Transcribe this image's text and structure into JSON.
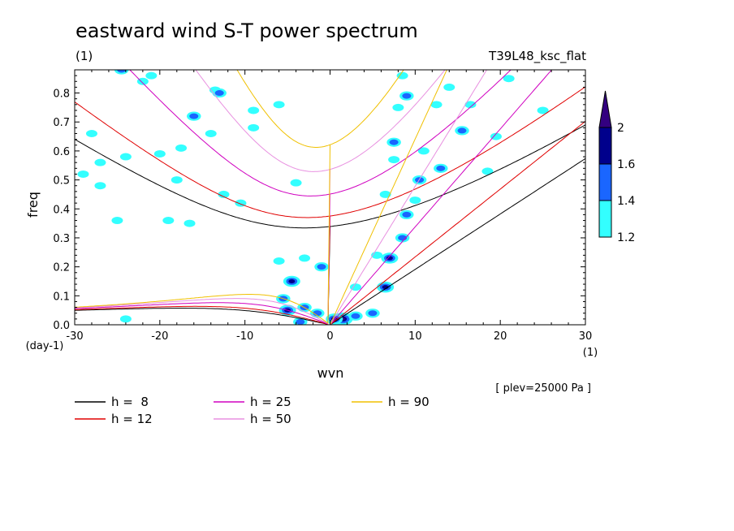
{
  "chart_data": {
    "type": "heatmap",
    "title": "eastward wind S-T power spectrum",
    "subtitle_left": "(1)",
    "subtitle_right": "T39L48_ksc_flat",
    "xlabel": "wvn",
    "ylabel": "freq",
    "x_unit": "(1)",
    "y_unit": "(day-1)",
    "level_note": "[ plev=25000 Pa ]",
    "xlim": [
      -30,
      30
    ],
    "ylim": [
      0,
      0.88
    ],
    "x_ticks": [
      -30,
      -20,
      -10,
      0,
      10,
      20,
      30
    ],
    "x_tick_labels": [
      "-30",
      "-20",
      "-10",
      "0",
      "10",
      "20",
      "30"
    ],
    "y_ticks": [
      0.0,
      0.1,
      0.2,
      0.3,
      0.4,
      0.5,
      0.6,
      0.7,
      0.8
    ],
    "y_tick_labels": [
      "0.0",
      "0.1",
      "0.2",
      "0.3",
      "0.4",
      "0.5",
      "0.6",
      "0.7",
      "0.8"
    ],
    "grid": false,
    "colorbar": {
      "levels": [
        1.2,
        1.4,
        1.6,
        2
      ],
      "labels": [
        "1.2",
        "1.4",
        "1.6",
        "2"
      ],
      "colors": [
        "#33ffff",
        "#1a66ff",
        "#00008c",
        "#330080"
      ],
      "extend": "max"
    },
    "dispersion_curves": [
      {
        "label": "h =  8",
        "h": 8,
        "color": "#000000"
      },
      {
        "label": "h = 12",
        "h": 12,
        "color": "#e00000"
      },
      {
        "label": "h = 25",
        "h": 25,
        "color": "#d000c0"
      },
      {
        "label": "h = 50",
        "h": 50,
        "color": "#e890e0"
      },
      {
        "label": "h = 90",
        "h": 90,
        "color": "#f0c000"
      }
    ],
    "blobs": [
      {
        "wvn": -24.5,
        "freq": 0.88,
        "level": 2
      },
      {
        "wvn": -22,
        "freq": 0.84,
        "level": 1
      },
      {
        "wvn": -21,
        "freq": 0.86,
        "level": 1
      },
      {
        "wvn": -13.5,
        "freq": 0.81,
        "level": 1
      },
      {
        "wvn": -13,
        "freq": 0.8,
        "level": 2
      },
      {
        "wvn": -9,
        "freq": 0.74,
        "level": 1
      },
      {
        "wvn": -9,
        "freq": 0.68,
        "level": 1
      },
      {
        "wvn": -16,
        "freq": 0.72,
        "level": 2
      },
      {
        "wvn": -17.5,
        "freq": 0.61,
        "level": 1
      },
      {
        "wvn": -20,
        "freq": 0.59,
        "level": 1
      },
      {
        "wvn": -24,
        "freq": 0.58,
        "level": 1
      },
      {
        "wvn": -27,
        "freq": 0.56,
        "level": 1
      },
      {
        "wvn": -29,
        "freq": 0.52,
        "level": 1
      },
      {
        "wvn": -28,
        "freq": 0.66,
        "level": 1
      },
      {
        "wvn": -18,
        "freq": 0.5,
        "level": 1
      },
      {
        "wvn": -12.5,
        "freq": 0.45,
        "level": 1
      },
      {
        "wvn": -10.5,
        "freq": 0.42,
        "level": 1
      },
      {
        "wvn": -16.5,
        "freq": 0.35,
        "level": 1
      },
      {
        "wvn": -19,
        "freq": 0.36,
        "level": 1
      },
      {
        "wvn": -25,
        "freq": 0.36,
        "level": 1
      },
      {
        "wvn": -4,
        "freq": 0.49,
        "level": 1
      },
      {
        "wvn": -6,
        "freq": 0.76,
        "level": 1
      },
      {
        "wvn": -14,
        "freq": 0.66,
        "level": 1
      },
      {
        "wvn": 8,
        "freq": 0.75,
        "level": 1
      },
      {
        "wvn": 8.5,
        "freq": 0.86,
        "level": 1
      },
      {
        "wvn": 9,
        "freq": 0.79,
        "level": 2
      },
      {
        "wvn": 12.5,
        "freq": 0.76,
        "level": 1
      },
      {
        "wvn": 14,
        "freq": 0.82,
        "level": 1
      },
      {
        "wvn": 16.5,
        "freq": 0.76,
        "level": 1
      },
      {
        "wvn": 15.5,
        "freq": 0.67,
        "level": 2
      },
      {
        "wvn": 11,
        "freq": 0.6,
        "level": 1
      },
      {
        "wvn": 13,
        "freq": 0.54,
        "level": 2
      },
      {
        "wvn": 10.5,
        "freq": 0.5,
        "level": 2
      },
      {
        "wvn": 7.5,
        "freq": 0.63,
        "level": 2
      },
      {
        "wvn": 7.5,
        "freq": 0.57,
        "level": 1
      },
      {
        "wvn": 19.5,
        "freq": 0.65,
        "level": 1
      },
      {
        "wvn": 18.5,
        "freq": 0.53,
        "level": 1
      },
      {
        "wvn": 25,
        "freq": 0.74,
        "level": 1
      },
      {
        "wvn": 9,
        "freq": 0.38,
        "level": 2
      },
      {
        "wvn": 10,
        "freq": 0.43,
        "level": 1
      },
      {
        "wvn": 8.5,
        "freq": 0.3,
        "level": 2
      },
      {
        "wvn": 7,
        "freq": 0.23,
        "level": 3
      },
      {
        "wvn": 5.5,
        "freq": 0.24,
        "level": 1
      },
      {
        "wvn": 6.5,
        "freq": 0.13,
        "level": 3
      },
      {
        "wvn": 5,
        "freq": 0.04,
        "level": 2
      },
      {
        "wvn": -4.5,
        "freq": 0.15,
        "level": 3
      },
      {
        "wvn": -5.5,
        "freq": 0.09,
        "level": 2
      },
      {
        "wvn": -5,
        "freq": 0.05,
        "level": 3
      },
      {
        "wvn": -3,
        "freq": 0.06,
        "level": 2
      },
      {
        "wvn": -1.5,
        "freq": 0.04,
        "level": 2
      },
      {
        "wvn": -3.5,
        "freq": 0.01,
        "level": 2
      },
      {
        "wvn": 1.5,
        "freq": 0.02,
        "level": 4
      },
      {
        "wvn": 0.5,
        "freq": 0.02,
        "level": 3
      },
      {
        "wvn": 3,
        "freq": 0.03,
        "level": 2
      },
      {
        "wvn": -1,
        "freq": 0.2,
        "level": 2
      },
      {
        "wvn": -3,
        "freq": 0.23,
        "level": 1
      },
      {
        "wvn": -6,
        "freq": 0.22,
        "level": 1
      },
      {
        "wvn": 3,
        "freq": 0.13,
        "level": 1
      },
      {
        "wvn": -24,
        "freq": 0.02,
        "level": 1
      },
      {
        "wvn": -27,
        "freq": 0.48,
        "level": 1
      },
      {
        "wvn": 6.5,
        "freq": 0.45,
        "level": 1
      },
      {
        "wvn": 21,
        "freq": 0.85,
        "level": 1
      }
    ]
  }
}
